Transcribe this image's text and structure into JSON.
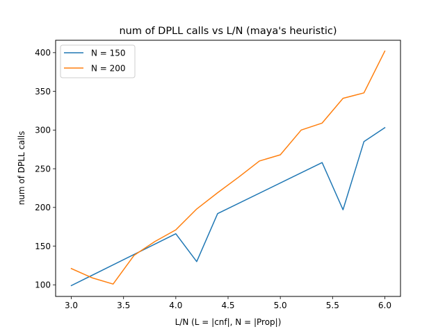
{
  "chart_data": {
    "type": "line",
    "title": "num of DPLL calls vs L/N (maya's heuristic)",
    "xlabel": "L/N (L = |cnf|, N = |Prop|)",
    "ylabel": "num of DPLL calls",
    "xlim": [
      2.85,
      6.15
    ],
    "ylim": [
      85,
      416
    ],
    "xticks": [
      3.0,
      3.5,
      4.0,
      4.5,
      5.0,
      5.5,
      6.0
    ],
    "xtick_labels": [
      "3.0",
      "3.5",
      "4.0",
      "4.5",
      "5.0",
      "5.5",
      "6.0"
    ],
    "yticks": [
      100,
      150,
      200,
      250,
      300,
      350,
      400
    ],
    "ytick_labels": [
      "100",
      "150",
      "200",
      "250",
      "300",
      "350",
      "400"
    ],
    "grid": false,
    "legend_position": "upper-left",
    "series": [
      {
        "name": "N = 150",
        "color": "#1f77b4",
        "x": [
          3.0,
          4.0,
          4.2,
          4.4,
          5.4,
          5.6,
          5.8,
          6.0
        ],
        "y": [
          99,
          166,
          130,
          192,
          258,
          197,
          285,
          303
        ]
      },
      {
        "name": "N = 200",
        "color": "#ff7f0e",
        "x": [
          3.0,
          3.2,
          3.4,
          3.6,
          3.8,
          4.0,
          4.2,
          4.4,
          4.6,
          4.8,
          5.0,
          5.2,
          5.4,
          5.6,
          5.8,
          6.0
        ],
        "y": [
          121,
          109,
          101,
          138,
          156,
          171,
          198,
          219,
          239,
          260,
          268,
          300,
          309,
          341,
          348,
          402
        ]
      }
    ]
  }
}
